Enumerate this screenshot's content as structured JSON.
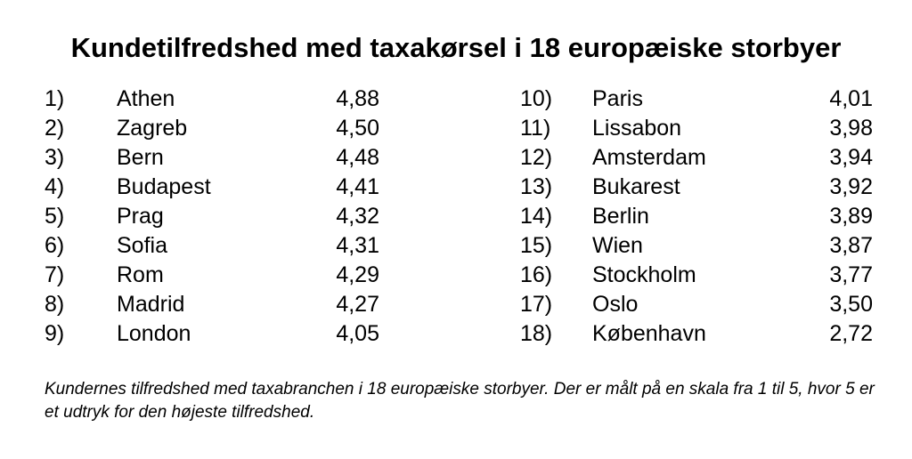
{
  "title": "Kundetilfredshed med taxakørsel i 18 europæiske storbyer",
  "rankings": [
    {
      "rank": "1)",
      "city": "Athen",
      "score": "4,88"
    },
    {
      "rank": "2)",
      "city": "Zagreb",
      "score": "4,50"
    },
    {
      "rank": "3)",
      "city": "Bern",
      "score": "4,48"
    },
    {
      "rank": "4)",
      "city": "Budapest",
      "score": "4,41"
    },
    {
      "rank": "5)",
      "city": "Prag",
      "score": "4,32"
    },
    {
      "rank": "6)",
      "city": "Sofia",
      "score": "4,31"
    },
    {
      "rank": "7)",
      "city": "Rom",
      "score": "4,29"
    },
    {
      "rank": "8)",
      "city": "Madrid",
      "score": "4,27"
    },
    {
      "rank": "9)",
      "city": "London",
      "score": "4,05"
    },
    {
      "rank": "10)",
      "city": "Paris",
      "score": "4,01"
    },
    {
      "rank": "11)",
      "city": "Lissabon",
      "score": "3,98"
    },
    {
      "rank": "12)",
      "city": "Amsterdam",
      "score": "3,94"
    },
    {
      "rank": "13)",
      "city": "Bukarest",
      "score": "3,92"
    },
    {
      "rank": "14)",
      "city": "Berlin",
      "score": "3,89"
    },
    {
      "rank": "15)",
      "city": "Wien",
      "score": "3,87"
    },
    {
      "rank": "16)",
      "city": "Stockholm",
      "score": "3,77"
    },
    {
      "rank": "17)",
      "city": "Oslo",
      "score": "3,50"
    },
    {
      "rank": "18)",
      "city": "København",
      "score": "2,72"
    }
  ],
  "caption": "Kundernes tilfredshed med taxabranchen i 18 europæiske storbyer. Der er målt på en skala fra 1 til 5, hvor 5 er et udtryk for den højeste tilfredshed."
}
